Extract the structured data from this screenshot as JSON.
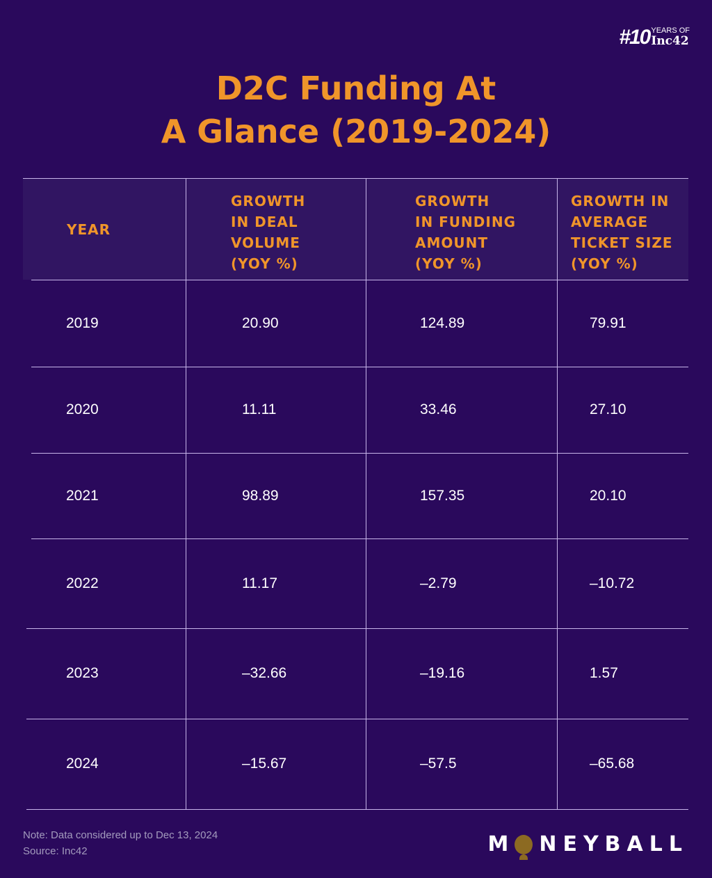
{
  "brand": {
    "number": "#10",
    "line1": "YEARS OF",
    "line2": "Inc42"
  },
  "title": {
    "line1": "D2C Funding At",
    "line2": "A Glance (2019-2024)"
  },
  "chart_data": {
    "type": "table",
    "title": "D2C Funding At A Glance (2019-2024)",
    "columns": [
      "YEAR",
      "GROWTH\nIN DEAL\nVOLUME\n(YOY %)",
      "GROWTH\nIN FUNDING\nAMOUNT\n(YOY %)",
      "GROWTH IN\nAVERAGE\nTICKET SIZE\n(YOY %)"
    ],
    "rows": [
      [
        "2019",
        "20.90",
        "124.89",
        "79.91"
      ],
      [
        "2020",
        "11.11",
        "33.46",
        "27.10"
      ],
      [
        "2021",
        "98.89",
        "157.35",
        "20.10"
      ],
      [
        "2022",
        "11.17",
        "-2.79",
        "-10.72"
      ],
      [
        "2023",
        "-32.66",
        "-19.16",
        "1.57"
      ],
      [
        "2024",
        "-15.67",
        "-57.5",
        "-65.68"
      ]
    ]
  },
  "footer": {
    "note": "Note: Data considered up to Dec 13, 2024",
    "source": "Source: Inc42",
    "logo_prefix": "M",
    "logo_suffix": "NEYBALL"
  },
  "colors": {
    "background": "#2a095c",
    "accent": "#f0952a",
    "gridline": "#c8b6ea",
    "logo_ball": "#8c6a22"
  }
}
